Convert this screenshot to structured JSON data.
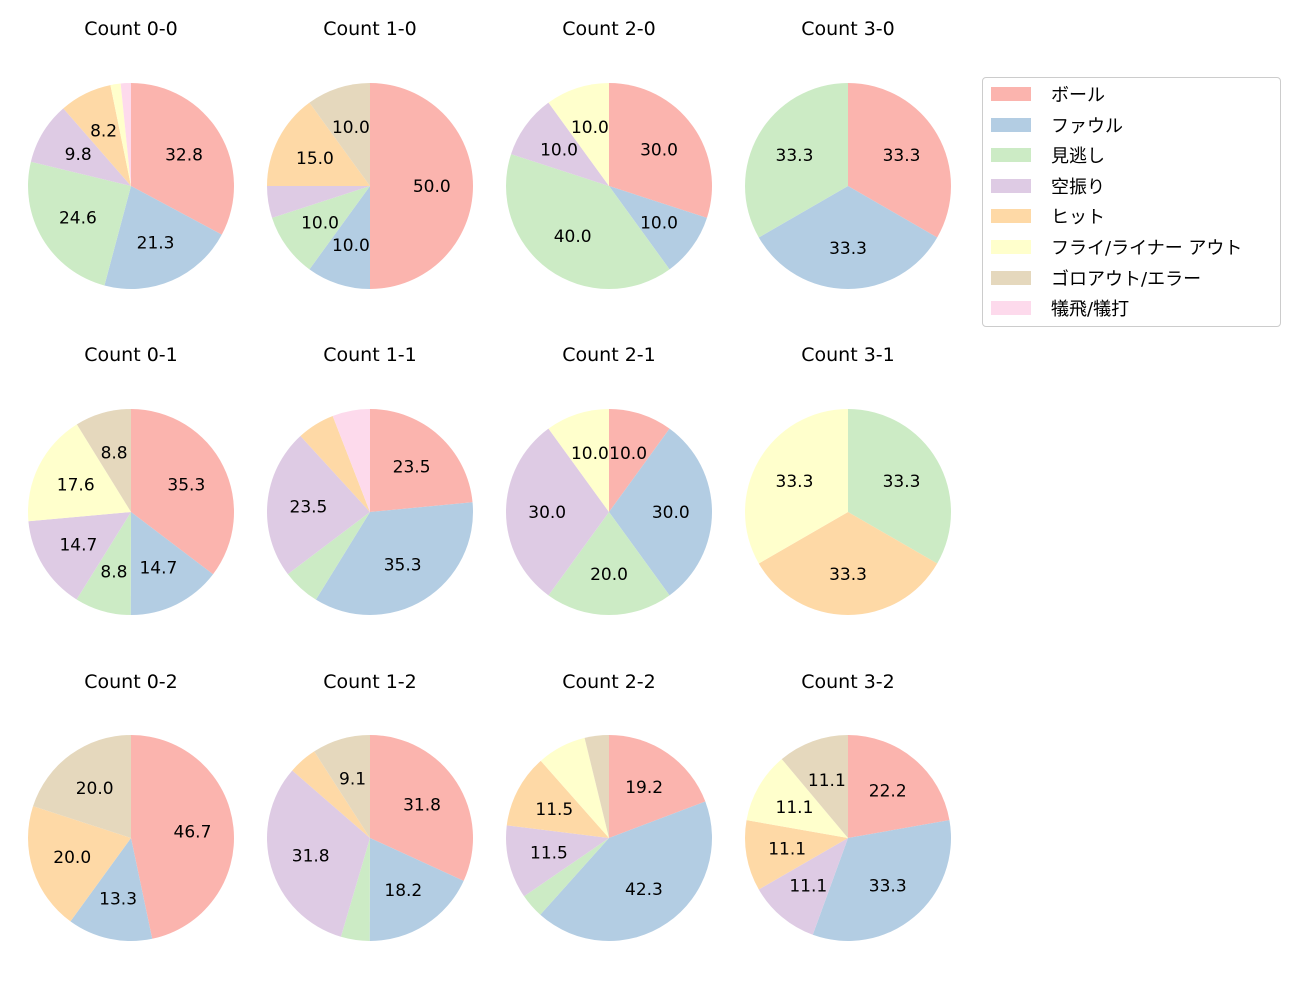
{
  "chart_data": {
    "type": "pie",
    "categories": [
      "ボール",
      "ファウル",
      "見逃し",
      "空振り",
      "ヒット",
      "フライ/ライナー アウト",
      "ゴロアウト/エラー",
      "犠飛/犠打"
    ],
    "colors": [
      "#fbb4ae",
      "#b3cde3",
      "#ccebc5",
      "#decbe4",
      "#fed9a6",
      "#ffffcc",
      "#e5d8bd",
      "#fddaec"
    ],
    "legend_placement": "right",
    "label_threshold_percent": 8,
    "pies": [
      {
        "title": "Count 0-0",
        "values": [
          32.8,
          21.3,
          24.6,
          9.8,
          8.2,
          1.6,
          0,
          1.6
        ]
      },
      {
        "title": "Count 1-0",
        "values": [
          50.0,
          10.0,
          10.0,
          5.0,
          15.0,
          0,
          10.0,
          0
        ]
      },
      {
        "title": "Count 2-0",
        "values": [
          30.0,
          10.0,
          40.0,
          10.0,
          0,
          10.0,
          0,
          0
        ]
      },
      {
        "title": "Count 3-0",
        "values": [
          33.3,
          33.3,
          33.3,
          0,
          0,
          0,
          0,
          0
        ]
      },
      {
        "title": "Count 0-1",
        "values": [
          35.3,
          14.7,
          8.8,
          14.7,
          0,
          17.6,
          8.8,
          0
        ]
      },
      {
        "title": "Count 1-1",
        "values": [
          23.5,
          35.3,
          5.9,
          23.5,
          5.9,
          0,
          0,
          5.9
        ]
      },
      {
        "title": "Count 2-1",
        "values": [
          10.0,
          30.0,
          20.0,
          30.0,
          0,
          10.0,
          0,
          0
        ]
      },
      {
        "title": "Count 3-1",
        "values": [
          0,
          0,
          33.3,
          0,
          33.3,
          33.3,
          0,
          0
        ]
      },
      {
        "title": "Count 0-2",
        "values": [
          46.7,
          13.3,
          0,
          0,
          20.0,
          0,
          20.0,
          0
        ]
      },
      {
        "title": "Count 1-2",
        "values": [
          31.8,
          18.2,
          4.5,
          31.8,
          4.5,
          0,
          9.1,
          0
        ]
      },
      {
        "title": "Count 2-2",
        "values": [
          19.2,
          42.3,
          3.8,
          11.5,
          11.5,
          7.7,
          3.8,
          0
        ]
      },
      {
        "title": "Count 3-2",
        "values": [
          22.2,
          33.3,
          0,
          11.1,
          11.1,
          11.1,
          11.1,
          0
        ]
      }
    ]
  }
}
